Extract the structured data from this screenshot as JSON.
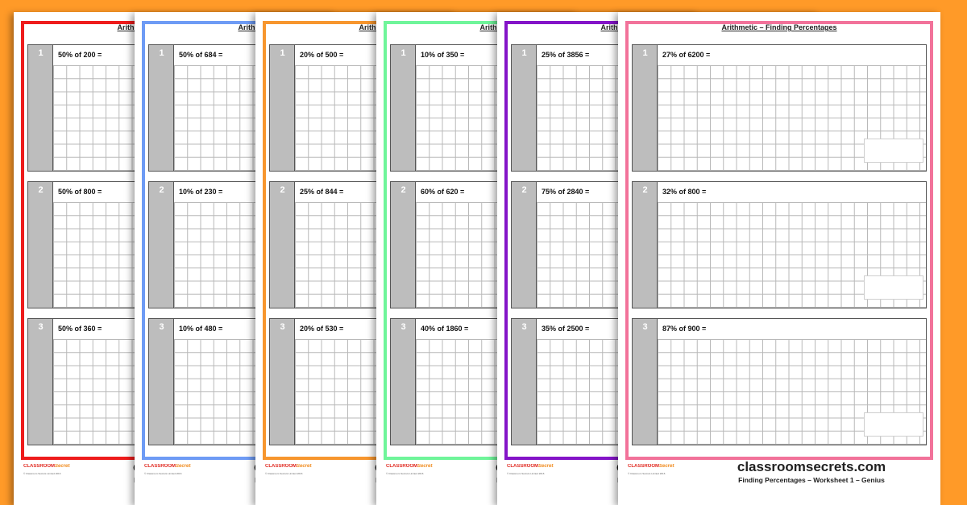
{
  "sheets": [
    {
      "border_color": "#ee1c1c",
      "questions": [
        {
          "number": "1",
          "text": "50% of 200 ="
        },
        {
          "number": "2",
          "text": "50% of 800 ="
        },
        {
          "number": "3",
          "text": "50% of 360 ="
        }
      ]
    },
    {
      "border_color": "#6e9bf5",
      "questions": [
        {
          "number": "1",
          "text": "50% of 684 ="
        },
        {
          "number": "2",
          "text": "10% of 230 ="
        },
        {
          "number": "3",
          "text": "10% of 480 ="
        }
      ]
    },
    {
      "border_color": "#f7962e",
      "questions": [
        {
          "number": "1",
          "text": "20% of 500 ="
        },
        {
          "number": "2",
          "text": "25% of 844 ="
        },
        {
          "number": "3",
          "text": "20% of 530 ="
        }
      ]
    },
    {
      "border_color": "#6ff59a",
      "questions": [
        {
          "number": "1",
          "text": "10% of 350 ="
        },
        {
          "number": "2",
          "text": "60% of 620 ="
        },
        {
          "number": "3",
          "text": "40% of 1860 ="
        }
      ]
    },
    {
      "border_color": "#8414c8",
      "questions": [
        {
          "number": "1",
          "text": "25% of 3856 ="
        },
        {
          "number": "2",
          "text": "75% of 2840 ="
        },
        {
          "number": "3",
          "text": "35% of 2500 ="
        }
      ]
    },
    {
      "border_color": "#f2729a",
      "questions": [
        {
          "number": "1",
          "text": "27% of 6200 ="
        },
        {
          "number": "2",
          "text": "32% of 800 ="
        },
        {
          "number": "3",
          "text": "87% of 900 ="
        }
      ]
    }
  ],
  "title": "Arithmetic – Finding Percentages",
  "brand": "classroomsecrets.com",
  "subtitle": "Finding Percentages – Worksheet  1 – Genius",
  "logo": {
    "part1": "CLASSROOM",
    "part2": "Secrets"
  },
  "copyright": "© Classroom Secrets Limited 2016"
}
